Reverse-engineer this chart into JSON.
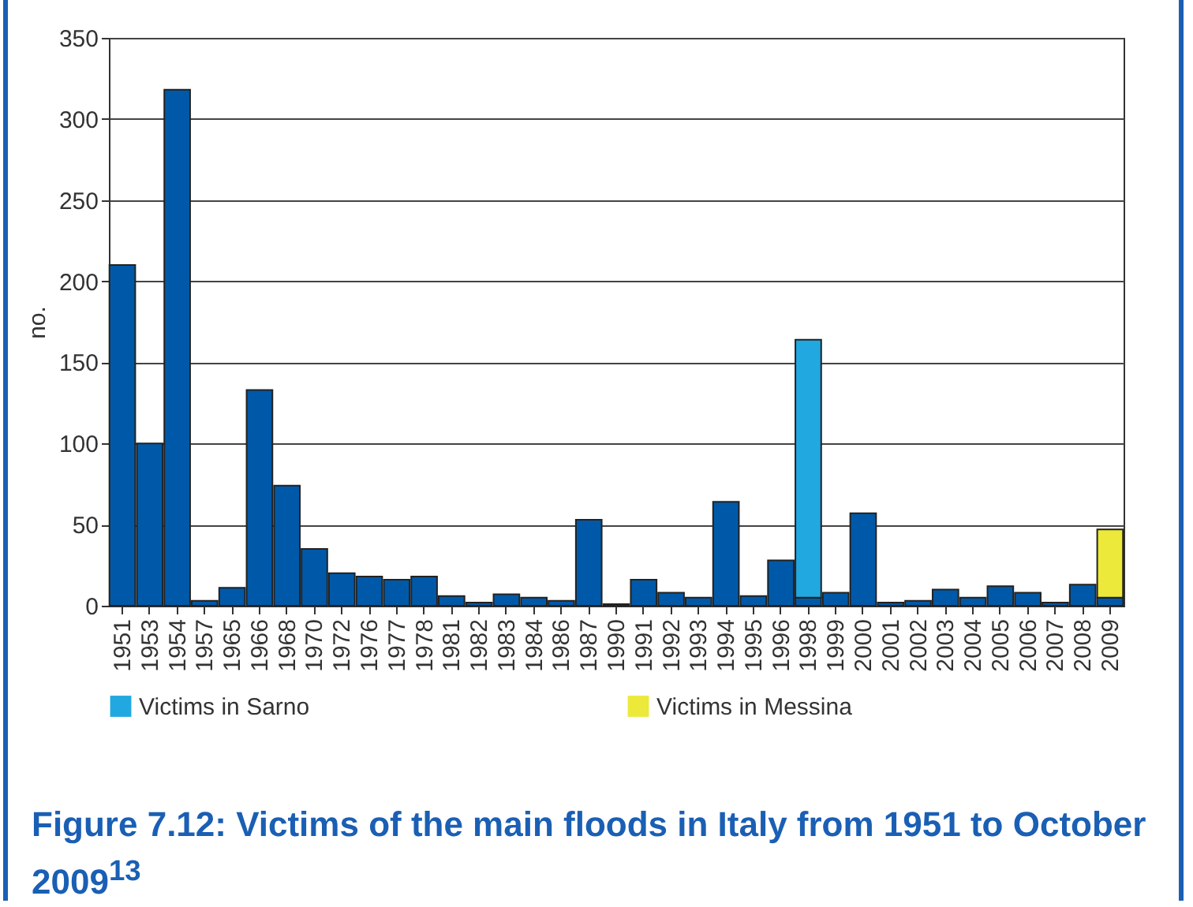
{
  "chart_data": {
    "type": "bar",
    "stacked": true,
    "ylabel": "no.",
    "title": "Figure 7.12: Victims of the main floods in Italy from 1951 to October 2009$^{13}$",
    "categories": [
      "1951",
      "1953",
      "1954",
      "1957",
      "1965",
      "1966",
      "1968",
      "1970",
      "1972",
      "1976",
      "1977",
      "1978",
      "1981",
      "1982",
      "1983",
      "1984",
      "1986",
      "1987",
      "1990",
      "1991",
      "1992",
      "1993",
      "1994",
      "1995",
      "1996",
      "1998",
      "1999",
      "2000",
      "2001",
      "2002",
      "2003",
      "2004",
      "2005",
      "2006",
      "2007",
      "2008",
      "2009"
    ],
    "series": [
      {
        "color": "#0059a8",
        "values": [
          210,
          100,
          318,
          3,
          11,
          133,
          74,
          35,
          20,
          18,
          16,
          18,
          6,
          2,
          7,
          5,
          3,
          53,
          1,
          16,
          8,
          5,
          64,
          6,
          28,
          5,
          8,
          57,
          2,
          3,
          10,
          5,
          12,
          8,
          2,
          13,
          5
        ]
      },
      {
        "name": "Victims in Sarno",
        "color": "#22a8e0",
        "values": [
          null,
          null,
          null,
          null,
          null,
          null,
          null,
          null,
          null,
          null,
          null,
          null,
          null,
          null,
          null,
          null,
          null,
          null,
          null,
          null,
          null,
          null,
          null,
          null,
          null,
          159,
          null,
          null,
          null,
          null,
          null,
          null,
          null,
          null,
          null,
          null,
          null
        ]
      },
      {
        "name": "Victims in Messina",
        "color": "#ece93a",
        "values": [
          null,
          null,
          null,
          null,
          null,
          null,
          null,
          null,
          null,
          null,
          null,
          null,
          null,
          null,
          null,
          null,
          null,
          null,
          null,
          null,
          null,
          null,
          null,
          null,
          null,
          null,
          null,
          null,
          null,
          null,
          null,
          null,
          null,
          null,
          null,
          null,
          42
        ]
      }
    ],
    "ylim": [
      0,
      350
    ],
    "yticks": [
      0,
      50,
      100,
      150,
      200,
      250,
      300,
      350
    ],
    "grid": "y",
    "legend": "bottom"
  }
}
